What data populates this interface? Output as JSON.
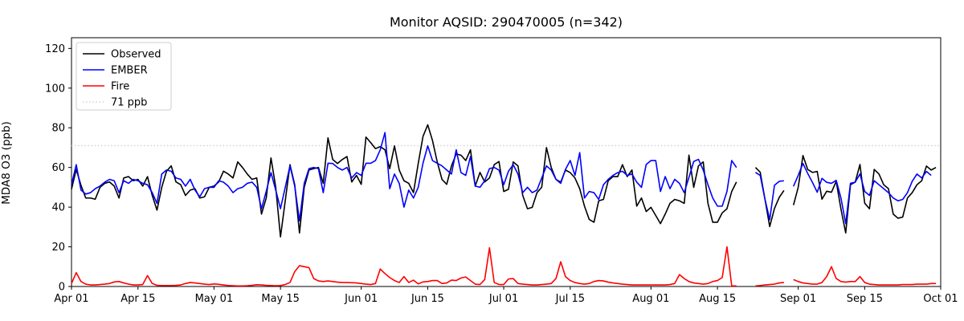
{
  "title": "Monitor AQSID: 290470005 (n=342)",
  "colors": {
    "observed": "#000000",
    "ember": "#0000ff",
    "fire": "#ff0000",
    "threshold": "#d3d3d3",
    "axis": "#000000",
    "legend_border": "#cccccc",
    "background": "#ffffff"
  },
  "chart_data": {
    "type": "line",
    "title": "Monitor AQSID: 290470005 (n=342)",
    "xlabel": "",
    "ylabel": "MDA8 O3 (ppb)",
    "ylim": [
      0,
      125.4
    ],
    "x_range_days": 183,
    "x_unit": "day_index_from_Apr_01",
    "grid": false,
    "legend_position": "upper left",
    "yticks": [
      0,
      20,
      40,
      60,
      80,
      100,
      120
    ],
    "xticks": [
      {
        "day": 0,
        "label": "Apr 01"
      },
      {
        "day": 14,
        "label": "Apr 15"
      },
      {
        "day": 30,
        "label": "May 01"
      },
      {
        "day": 44,
        "label": "May 15"
      },
      {
        "day": 61,
        "label": "Jun 01"
      },
      {
        "day": 75,
        "label": "Jun 15"
      },
      {
        "day": 91,
        "label": "Jul 01"
      },
      {
        "day": 105,
        "label": "Jul 15"
      },
      {
        "day": 122,
        "label": "Aug 01"
      },
      {
        "day": 136,
        "label": "Aug 15"
      },
      {
        "day": 153,
        "label": "Sep 01"
      },
      {
        "day": 167,
        "label": "Sep 15"
      },
      {
        "day": 183,
        "label": "Oct 01"
      }
    ],
    "threshold": {
      "label": "71 ppb",
      "value": 71,
      "style": "dotted",
      "color": "#d3d3d3"
    },
    "series": [
      {
        "name": "Observed",
        "color": "#000000",
        "values": [
          49,
          59,
          51,
          44.6,
          44.6,
          44,
          50,
          52,
          52.7,
          50.6,
          44.6,
          54.7,
          55.4,
          53.3,
          54,
          50.6,
          55.4,
          45.9,
          38.5,
          50,
          58.1,
          60.8,
          52.7,
          51.3,
          45.9,
          48.6,
          49.3,
          44.6,
          45.2,
          50,
          50.6,
          52.7,
          58.1,
          56.7,
          54.7,
          62.8,
          60,
          56.7,
          54,
          54.7,
          36.5,
          44.6,
          64.8,
          50,
          25,
          43.2,
          61.4,
          51.3,
          27,
          50,
          58.7,
          59.4,
          60,
          52,
          74.9,
          64,
          62,
          64,
          65.5,
          52.7,
          56,
          51.5,
          75.3,
          72.5,
          69.5,
          70.5,
          68.9,
          59.4,
          70.9,
          58.7,
          53.3,
          52,
          47.3,
          62,
          75.6,
          81.5,
          73.6,
          62.8,
          54,
          51.5,
          60.8,
          66.8,
          66.2,
          63.5,
          68.9,
          50.6,
          57.5,
          52.7,
          54.7,
          61.4,
          63,
          47.9,
          49,
          62.8,
          60.8,
          45.9,
          39.2,
          39.9,
          47.3,
          50,
          70,
          60,
          54,
          52.6,
          58.7,
          57.4,
          54.7,
          49.3,
          40.5,
          33.8,
          32.4,
          43.2,
          43.9,
          53.3,
          55.4,
          55.4,
          61.4,
          55.4,
          58.7,
          40.5,
          44.6,
          37.8,
          39.9,
          35.8,
          31.7,
          36.5,
          41.9,
          43.9,
          43.2,
          41.9,
          66.2,
          50,
          60.8,
          62.8,
          41.9,
          32.4,
          32.4,
          37.1,
          39.2,
          47.9,
          52.7,
          null,
          null,
          null,
          60,
          57.6,
          44,
          30.2,
          39.3,
          44.9,
          48.4,
          null,
          41,
          50,
          66,
          59,
          57.5,
          58,
          44,
          48,
          47.5,
          53,
          39,
          27,
          51.3,
          52.6,
          61.5,
          42,
          39.2,
          59,
          56.7,
          51.3,
          49.3,
          36.5,
          34.4,
          35,
          44.6,
          47.3,
          51.3,
          53.3,
          60.7,
          58.7,
          60
        ]
      },
      {
        "name": "EMBER",
        "color": "#0000ff",
        "values": [
          51.3,
          61.4,
          48.6,
          46.6,
          47.3,
          49.3,
          50.6,
          52.6,
          54,
          53.3,
          47.3,
          53.3,
          52,
          54,
          53.3,
          52,
          51.3,
          47.3,
          41.9,
          56.7,
          58.7,
          58.1,
          54.7,
          54,
          50.6,
          54,
          48.6,
          45.2,
          49.3,
          50,
          50,
          53.3,
          52.6,
          50.6,
          47.3,
          49.3,
          50,
          52,
          52.6,
          50,
          39.2,
          48,
          57.4,
          48.6,
          39.2,
          50,
          60.8,
          50.6,
          33.1,
          52,
          59.4,
          60,
          59.4,
          47.3,
          62.1,
          62,
          60,
          58.7,
          60,
          54.7,
          57.4,
          56,
          62.1,
          62.1,
          63.5,
          68.9,
          77.6,
          49.3,
          56.7,
          52,
          40,
          48.6,
          44.6,
          50,
          62.1,
          70.9,
          63.5,
          62.1,
          60.8,
          58.7,
          56.7,
          68.9,
          57.4,
          56,
          65.5,
          50.6,
          50,
          53.3,
          59.4,
          60,
          58.7,
          51.3,
          58.1,
          61.4,
          56.7,
          47.3,
          50,
          47.3,
          48.6,
          54.7,
          60.8,
          58.7,
          54,
          52,
          59,
          63.5,
          56,
          67.5,
          44.6,
          47.9,
          47.3,
          43.9,
          51.3,
          54,
          56,
          57.4,
          58.1,
          56,
          56.7,
          52.6,
          50,
          61.5,
          63.5,
          63.5,
          47.9,
          55.4,
          49.3,
          54,
          52,
          47.3,
          55,
          63,
          64.1,
          58.7,
          51.3,
          44.6,
          40.5,
          40.5,
          47.9,
          63.5,
          60,
          null,
          null,
          null,
          57.5,
          56,
          44,
          33.7,
          51,
          53,
          53.3,
          null,
          50.5,
          56,
          62,
          57,
          52.5,
          47.5,
          54.5,
          52.5,
          52,
          53.5,
          44.6,
          31.7,
          52,
          52.6,
          56.7,
          47.9,
          45.9,
          53.3,
          51.3,
          49.3,
          47.3,
          44.6,
          43.2,
          43.9,
          47.3,
          53,
          56.7,
          54.7,
          58,
          56,
          null
        ]
      },
      {
        "name": "Fire",
        "color": "#ff0000",
        "values": [
          1.5,
          7,
          2.5,
          1.2,
          0.8,
          0.8,
          1,
          1.2,
          1.5,
          2.3,
          2.5,
          1.8,
          1.2,
          0.8,
          0.8,
          1,
          5.5,
          1.5,
          0.6,
          0.5,
          0.5,
          0.5,
          0.6,
          0.8,
          1.5,
          2,
          1.8,
          1.5,
          1.2,
          1,
          1.3,
          1.1,
          0.8,
          0.5,
          0.4,
          0.3,
          0.3,
          0.4,
          0.6,
          0.9,
          0.8,
          0.6,
          0.5,
          0.4,
          0.5,
          1,
          2,
          7.5,
          10.5,
          10,
          9.5,
          4,
          2.8,
          2.5,
          2.8,
          2.5,
          2.2,
          2,
          2,
          1.9,
          1.8,
          1.5,
          1.2,
          1,
          1.5,
          8.8,
          6.5,
          4.5,
          3,
          2,
          5,
          2,
          3.2,
          1.3,
          2.3,
          2.5,
          3,
          3,
          1.5,
          1.8,
          3.2,
          3,
          4.3,
          4.8,
          3,
          1.2,
          1,
          3.5,
          19.5,
          2,
          1,
          1,
          3.8,
          4,
          1.5,
          1.2,
          1,
          0.8,
          0.8,
          1,
          1.2,
          1.5,
          4,
          12.5,
          5,
          3,
          2,
          1.5,
          1.2,
          1.5,
          2.5,
          3,
          2.8,
          2.2,
          1.8,
          1.5,
          1.2,
          1,
          0.8,
          0.8,
          0.8,
          0.8,
          0.8,
          0.8,
          0.8,
          0.8,
          1,
          1.5,
          6,
          4,
          2.5,
          1.8,
          1.5,
          1.2,
          1.5,
          2.5,
          3,
          4.5,
          20,
          0.3,
          0.3,
          null,
          null,
          null,
          0.3,
          0.5,
          0.8,
          1,
          1.2,
          1.8,
          2,
          null,
          3.5,
          2.5,
          1.8,
          1.5,
          1.2,
          1.2,
          2,
          5,
          10,
          4,
          2.5,
          2.2,
          2.5,
          2.5,
          5,
          2,
          1.2,
          1,
          0.8,
          0.8,
          0.8,
          0.8,
          0.8,
          1,
          1,
          1,
          1.2,
          1.2,
          1.2,
          1.5,
          1.5
        ]
      }
    ],
    "legend": [
      "Observed",
      "EMBER",
      "Fire",
      "71 ppb"
    ]
  }
}
